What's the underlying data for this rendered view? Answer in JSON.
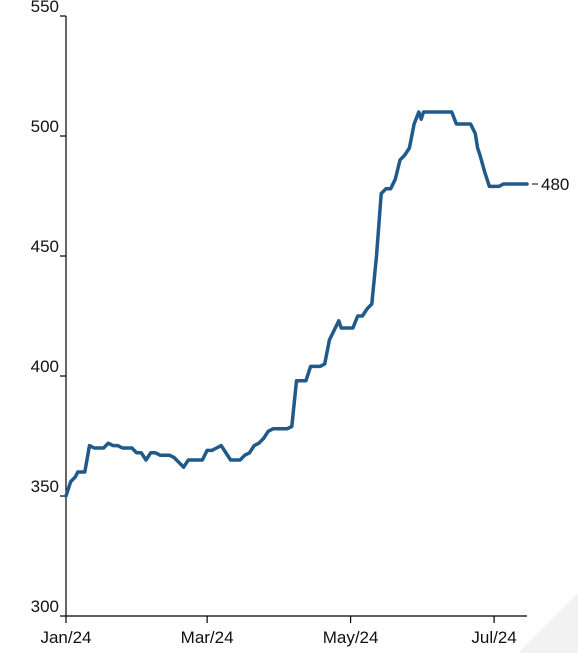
{
  "chart_data": {
    "type": "line",
    "title": "",
    "xlabel": "",
    "ylabel": "",
    "ylim": [
      300,
      550
    ],
    "y_ticks": [
      300,
      350,
      400,
      450,
      500,
      550
    ],
    "x_ticks": [
      {
        "label": "Jan/24",
        "day": 0
      },
      {
        "label": "Mar/24",
        "day": 60
      },
      {
        "label": "May/24",
        "day": 121
      },
      {
        "label": "Jul/24",
        "day": 182
      }
    ],
    "x_range_days": [
      0,
      196
    ],
    "grid": false,
    "legend": "none",
    "series_color": "#1f5a8a",
    "end_label": "480",
    "series": [
      {
        "x": [
          0,
          2,
          4,
          5,
          7,
          8,
          10,
          12,
          14,
          16,
          18,
          20,
          22,
          24,
          26,
          28,
          30,
          32,
          34,
          36,
          38,
          40,
          42,
          44,
          46,
          48,
          50,
          52,
          54,
          56,
          58,
          60,
          62,
          64,
          66,
          68,
          70,
          72,
          74,
          76,
          78,
          80,
          82,
          84,
          86,
          88,
          90,
          92,
          94,
          96,
          98,
          100,
          102,
          104,
          106,
          108,
          110,
          112,
          114,
          116,
          117,
          118,
          120,
          122,
          124,
          126,
          128,
          130,
          132,
          134,
          136,
          138,
          140,
          142,
          144,
          146,
          148,
          150,
          151,
          152,
          153,
          154,
          156,
          158,
          160,
          162,
          164,
          166,
          168,
          170,
          172,
          174,
          175,
          176,
          178,
          180,
          182,
          184,
          186,
          188,
          190,
          192,
          194,
          196
        ],
        "y": [
          350,
          356,
          358,
          360,
          360,
          360,
          371,
          370,
          370,
          370,
          372,
          371,
          371,
          370,
          370,
          370,
          368,
          368,
          365,
          368,
          368,
          367,
          367,
          367,
          366,
          364,
          362,
          365,
          365,
          365,
          365,
          369,
          369,
          370,
          371,
          368,
          365,
          365,
          365,
          367,
          368,
          371,
          372,
          374,
          377,
          378,
          378,
          378,
          378,
          379,
          398,
          398,
          398,
          404,
          404,
          404,
          405,
          415,
          419,
          423,
          420,
          420,
          420,
          420,
          425,
          425,
          428,
          430,
          450,
          476,
          478,
          478,
          482,
          490,
          492,
          495,
          505,
          510,
          507,
          510,
          510,
          510,
          510,
          510,
          510,
          510,
          510,
          505,
          505,
          505,
          505,
          501,
          495,
          492,
          485,
          479,
          479,
          479,
          480,
          480,
          480,
          480,
          480,
          480
        ]
      }
    ]
  }
}
